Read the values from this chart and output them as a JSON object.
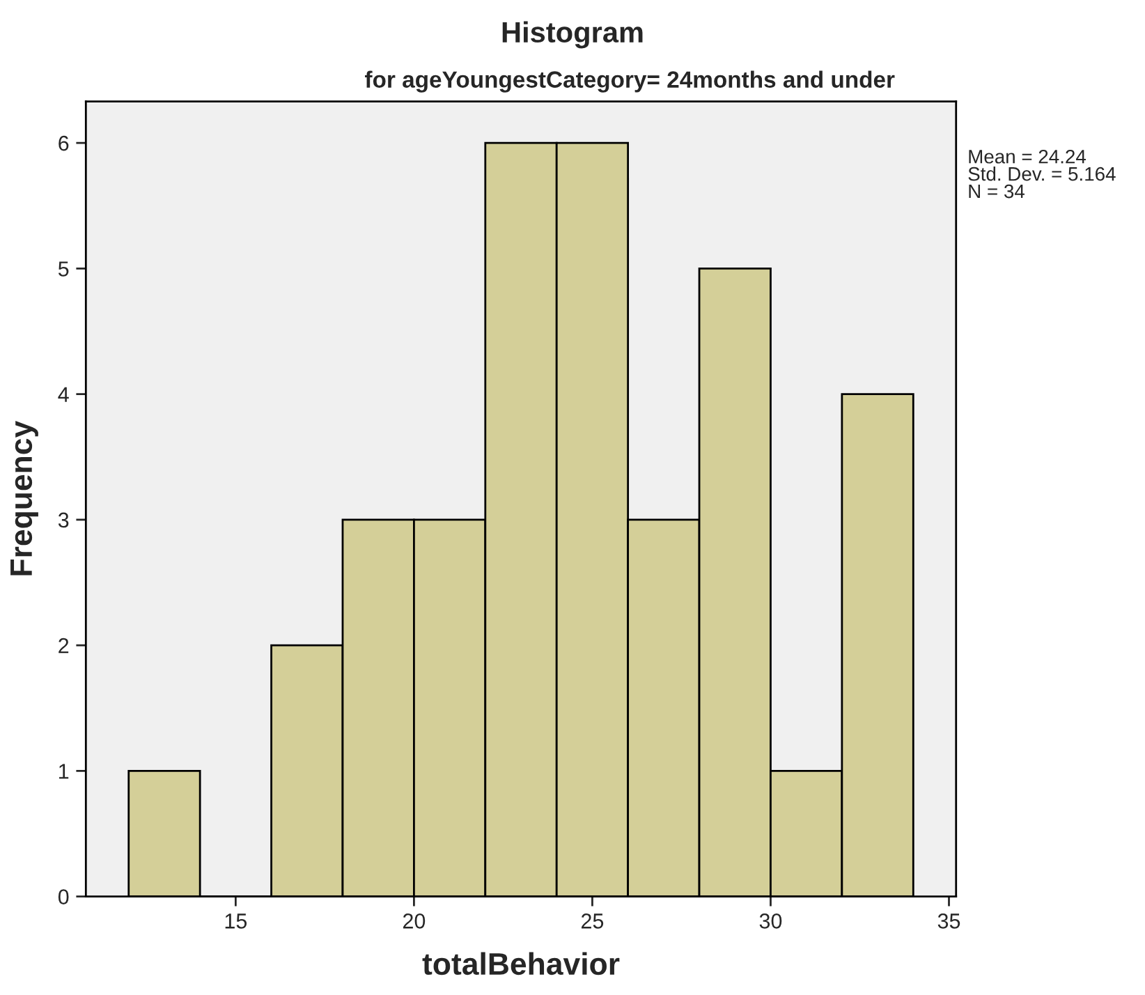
{
  "chart_data": {
    "type": "histogram",
    "title": "Histogram",
    "subtitle": "for ageYoungestCategory= 24months and under",
    "xlabel": "totalBehavior",
    "ylabel": "Frequency",
    "bins": [
      12,
      14,
      16,
      18,
      20,
      22,
      24,
      26,
      28,
      30,
      32,
      34
    ],
    "values": [
      1,
      0,
      2,
      3,
      3,
      6,
      6,
      3,
      5,
      1,
      4
    ],
    "color": "#d4cf98",
    "xlim": [
      10.8,
      35.2
    ],
    "xticks": [
      15,
      20,
      25,
      30,
      35
    ],
    "ylim": [
      0,
      6.33
    ],
    "yticks": [
      0,
      1,
      2,
      3,
      4,
      5,
      6
    ],
    "annotations": [
      "Mean = 24.24\nStd. Dev. = 5.164\nN = 34"
    ],
    "grid": false,
    "legend": false
  }
}
